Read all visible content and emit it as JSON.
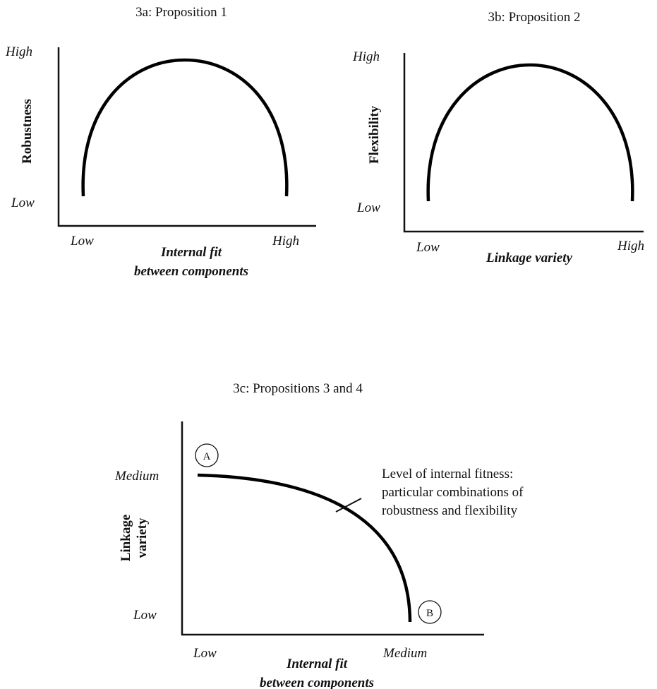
{
  "panel_a": {
    "title": "3a: Proposition 1",
    "y_axis_label": "Robustness",
    "y_high": "High",
    "y_low": "Low",
    "x_low": "Low",
    "x_high": "High",
    "x_axis_label_line1": "Internal fit",
    "x_axis_label_line2": "between components",
    "curve_shape": "inverted-u"
  },
  "panel_b": {
    "title": "3b: Proposition 2",
    "y_axis_label": "Flexibility",
    "y_high": "High",
    "y_low": "Low",
    "x_low": "Low",
    "x_high": "High",
    "x_axis_label": "Linkage variety",
    "curve_shape": "inverted-u"
  },
  "panel_c": {
    "title": "3c: Propositions 3 and 4",
    "y_axis_label_line1": "Linkage",
    "y_axis_label_line2": "variety",
    "y_medium": "Medium",
    "y_low": "Low",
    "x_low": "Low",
    "x_medium": "Medium",
    "x_axis_label_line1": "Internal fit",
    "x_axis_label_line2": "between components",
    "annotation_line1": "Level of internal fitness:",
    "annotation_line2": "particular combinations of",
    "annotation_line3": "robustness and flexibility",
    "marker_a": "A",
    "marker_b": "B",
    "curve_shape": "concave-decreasing"
  }
}
